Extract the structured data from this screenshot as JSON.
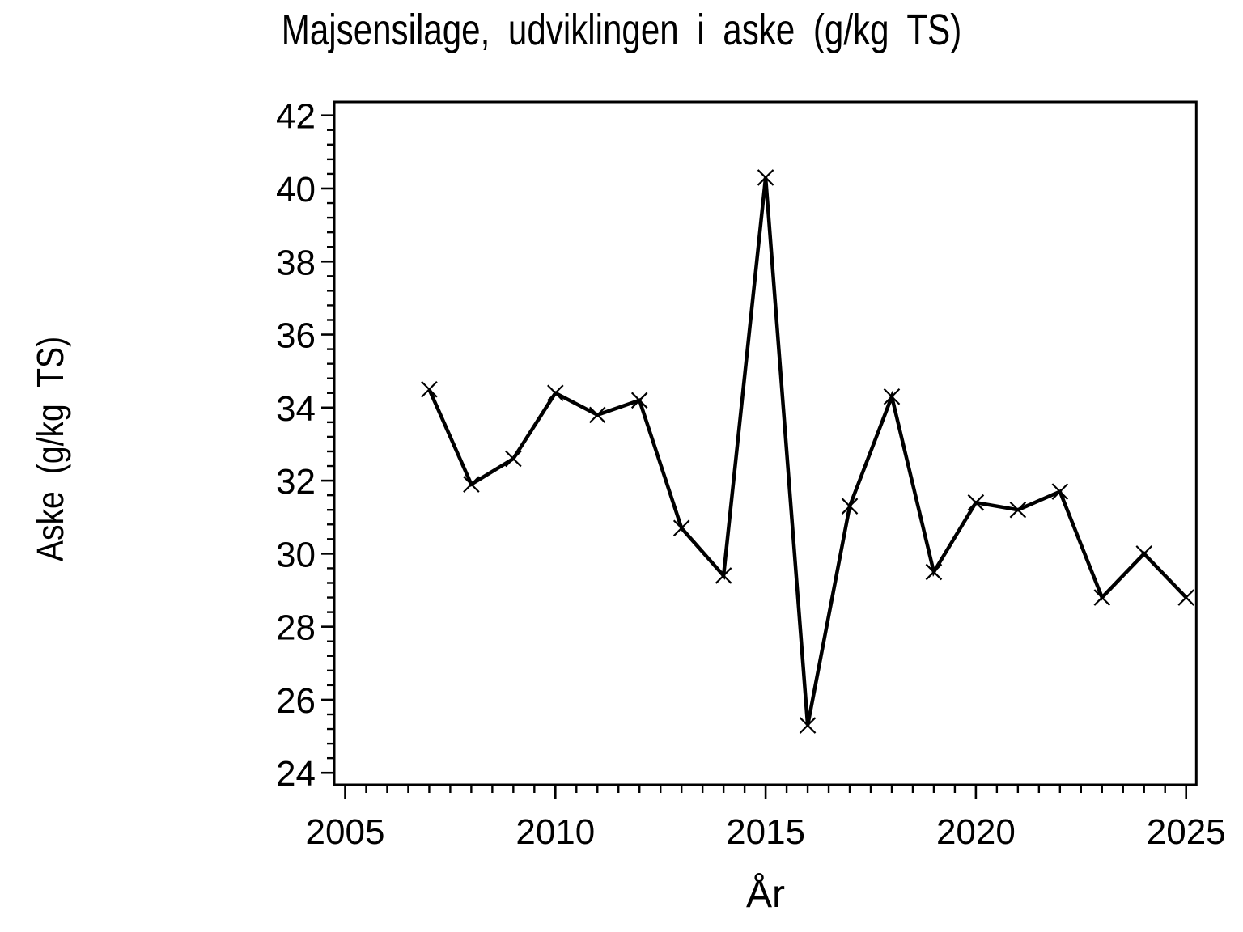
{
  "title": "Majsensilage, udviklingen i aske (g/kg TS)",
  "chart_data": {
    "type": "line",
    "title": "Majsensilage, udviklingen i aske (g/kg TS)",
    "xlabel": "År",
    "ylabel": "Aske (g/kg TS)",
    "series_name": "Aske",
    "x": [
      2007,
      2008,
      2009,
      2010,
      2011,
      2012,
      2013,
      2014,
      2015,
      2016,
      2017,
      2018,
      2019,
      2020,
      2021,
      2022,
      2023,
      2024,
      2025
    ],
    "values": [
      34.5,
      31.9,
      32.6,
      34.4,
      33.8,
      34.2,
      30.7,
      29.4,
      40.3,
      25.3,
      31.3,
      34.3,
      29.5,
      31.4,
      31.2,
      31.7,
      28.8,
      30.0,
      28.8
    ],
    "marker": "x",
    "line_color": "#000000",
    "background_color": "#ffffff",
    "xlim": [
      2004.7,
      2025.25
    ],
    "ylim": [
      23.7,
      42.4
    ],
    "x_major_ticks": [
      2005,
      2010,
      2015,
      2020,
      2025
    ],
    "x_minor_step": 0.5,
    "y_major_ticks": [
      24,
      26,
      28,
      30,
      32,
      34,
      36,
      38,
      40,
      42
    ],
    "y_minor_step": 0.4,
    "grid": false,
    "legend": "none"
  }
}
